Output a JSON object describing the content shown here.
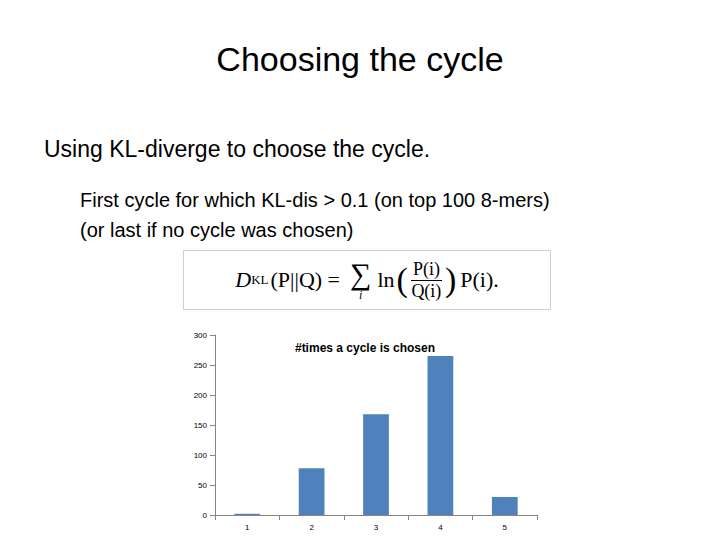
{
  "slide": {
    "title": "Choosing the cycle",
    "lines": [
      "Using KL-diverge to choose the cycle.",
      "First cycle for which KL-dis > 0.1 (on top 100 8-mers)",
      "(or last if no cycle was chosen)"
    ],
    "formula": {
      "lhs": "D",
      "lhs_sub": "KL",
      "lhs_arg": "(P||Q) =",
      "sum": "∑",
      "sum_sub": "i",
      "fn": "ln",
      "num": "P(i)",
      "den": "Q(i)",
      "tail": "P(i)."
    }
  },
  "chart_data": {
    "type": "bar",
    "title": "#times a cycle is chosen",
    "categories": [
      "1",
      "2",
      "3",
      "4",
      "5"
    ],
    "values": [
      2,
      78,
      168,
      265,
      30
    ],
    "color": "#4f81bd",
    "ylim": [
      0,
      300
    ],
    "yticks": [
      0,
      50,
      100,
      150,
      200,
      250,
      300
    ],
    "grid": false
  }
}
